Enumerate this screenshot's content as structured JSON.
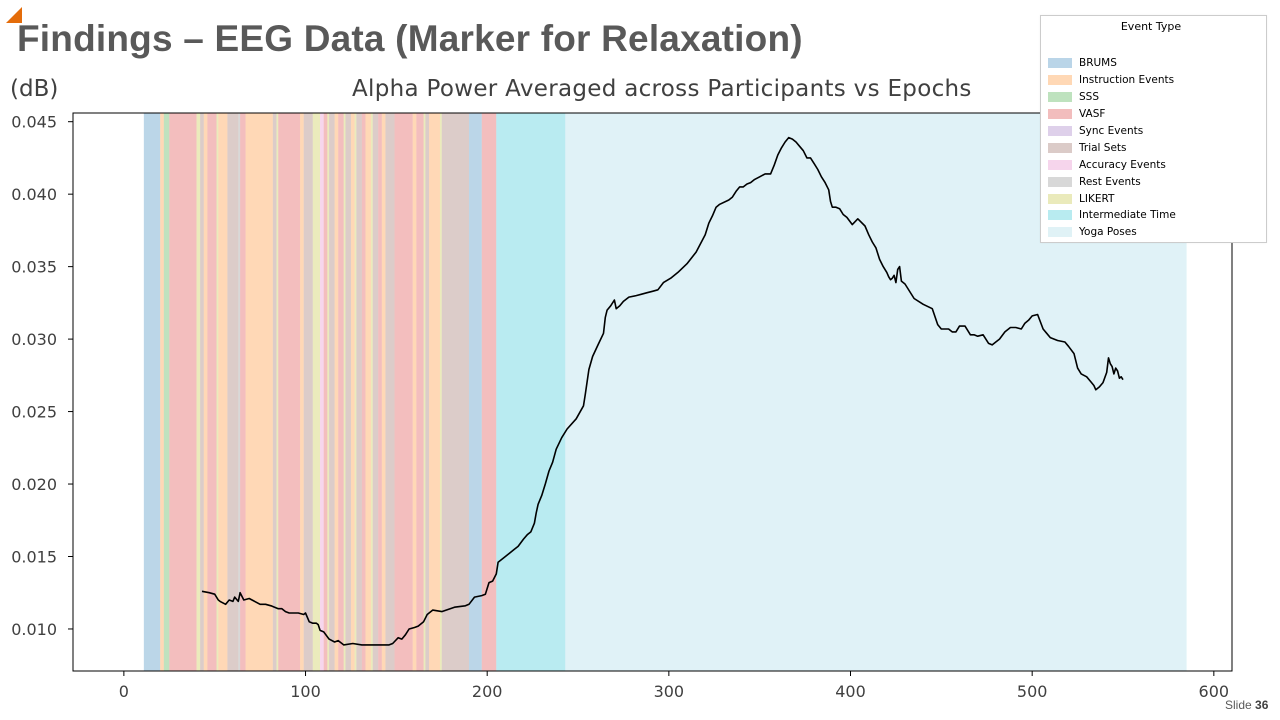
{
  "slide": {
    "title": "Findings – EEG Data (Marker for Relaxation)",
    "unit_label": "(dB)",
    "number_prefix": "Slide",
    "number": "36",
    "accent_color": "#e46c0a"
  },
  "legend": {
    "title": "Event Type",
    "items": [
      {
        "label": "BRUMS",
        "color": "#1f77b4"
      },
      {
        "label": "Instruction Events",
        "color": "#ff7f0e"
      },
      {
        "label": "SSS",
        "color": "#2ca02c"
      },
      {
        "label": "VASF",
        "color": "#d62728"
      },
      {
        "label": "Sync Events",
        "color": "#9467bd"
      },
      {
        "label": "Trial Sets",
        "color": "#8c564b"
      },
      {
        "label": "Accuracy Events",
        "color": "#e377c2"
      },
      {
        "label": "Rest Events",
        "color": "#7f7f7f"
      },
      {
        "label": "LIKERT",
        "color": "#bcbd22"
      },
      {
        "label": "Intermediate Time",
        "color": "#17becf"
      },
      {
        "label": "Yoga Poses",
        "color": "#a7dbe8"
      }
    ]
  },
  "chart_data": {
    "type": "line",
    "title": "Alpha Power Averaged across Participants vs Epochs",
    "xlabel": "",
    "ylabel": "(dB)",
    "xlim": [
      -28,
      610
    ],
    "ylim": [
      0.0071,
      0.0456
    ],
    "xticks": [
      "0",
      "100",
      "200",
      "300",
      "400",
      "500",
      "600"
    ],
    "xtick_values": [
      0,
      100,
      200,
      300,
      400,
      500,
      600
    ],
    "yticks": [
      "0.010",
      "0.015",
      "0.020",
      "0.025",
      "0.030",
      "0.035",
      "0.040",
      "0.045"
    ],
    "ytick_values": [
      0.01,
      0.015,
      0.02,
      0.025,
      0.03,
      0.035,
      0.04,
      0.045
    ],
    "grid": false,
    "legend_position": "top-right",
    "event_spans": [
      {
        "type": "BRUMS",
        "start": 11,
        "end": 20
      },
      {
        "type": "Instruction Events",
        "start": 20,
        "end": 22
      },
      {
        "type": "SSS",
        "start": 22,
        "end": 25
      },
      {
        "type": "VASF",
        "start": 25,
        "end": 40
      },
      {
        "type": "LIKERT",
        "start": 40,
        "end": 42
      },
      {
        "type": "Trial Sets",
        "start": 42,
        "end": 44
      },
      {
        "type": "Instruction Events",
        "start": 44,
        "end": 46
      },
      {
        "type": "VASF",
        "start": 46,
        "end": 51
      },
      {
        "type": "LIKERT",
        "start": 51,
        "end": 52
      },
      {
        "type": "Instruction Events",
        "start": 52,
        "end": 57
      },
      {
        "type": "Trial Sets",
        "start": 57,
        "end": 63
      },
      {
        "type": "Rest Events",
        "start": 63,
        "end": 64
      },
      {
        "type": "VASF",
        "start": 64,
        "end": 67
      },
      {
        "type": "Instruction Events",
        "start": 67,
        "end": 82
      },
      {
        "type": "Trial Sets",
        "start": 82,
        "end": 84
      },
      {
        "type": "LIKERT",
        "start": 84,
        "end": 85
      },
      {
        "type": "VASF",
        "start": 85,
        "end": 97
      },
      {
        "type": "Instruction Events",
        "start": 97,
        "end": 99
      },
      {
        "type": "Trial Sets",
        "start": 99,
        "end": 104
      },
      {
        "type": "LIKERT",
        "start": 104,
        "end": 108
      },
      {
        "type": "Accuracy Events",
        "start": 108,
        "end": 110
      },
      {
        "type": "VASF",
        "start": 110,
        "end": 112
      },
      {
        "type": "LIKERT",
        "start": 112,
        "end": 113
      },
      {
        "type": "Trial Sets",
        "start": 113,
        "end": 116
      },
      {
        "type": "Instruction Events",
        "start": 116,
        "end": 118
      },
      {
        "type": "VASF",
        "start": 118,
        "end": 121
      },
      {
        "type": "LIKERT",
        "start": 121,
        "end": 122
      },
      {
        "type": "Trial Sets",
        "start": 122,
        "end": 125
      },
      {
        "type": "Instruction Events",
        "start": 125,
        "end": 127
      },
      {
        "type": "LIKERT",
        "start": 127,
        "end": 128
      },
      {
        "type": "Trial Sets",
        "start": 128,
        "end": 131
      },
      {
        "type": "VASF",
        "start": 131,
        "end": 133
      },
      {
        "type": "Instruction Events",
        "start": 133,
        "end": 136
      },
      {
        "type": "LIKERT",
        "start": 136,
        "end": 137
      },
      {
        "type": "Trial Sets",
        "start": 137,
        "end": 140
      },
      {
        "type": "VASF",
        "start": 140,
        "end": 142
      },
      {
        "type": "Instruction Events",
        "start": 142,
        "end": 144
      },
      {
        "type": "Trial Sets",
        "start": 144,
        "end": 149
      },
      {
        "type": "VASF",
        "start": 149,
        "end": 159
      },
      {
        "type": "Instruction Events",
        "start": 159,
        "end": 161
      },
      {
        "type": "VASF",
        "start": 161,
        "end": 165
      },
      {
        "type": "LIKERT",
        "start": 165,
        "end": 166
      },
      {
        "type": "Trial Sets",
        "start": 166,
        "end": 168
      },
      {
        "type": "Instruction Events",
        "start": 168,
        "end": 174
      },
      {
        "type": "LIKERT",
        "start": 174,
        "end": 175
      },
      {
        "type": "Trial Sets",
        "start": 175,
        "end": 190
      },
      {
        "type": "BRUMS",
        "start": 190,
        "end": 197
      },
      {
        "type": "VASF",
        "start": 197,
        "end": 205
      },
      {
        "type": "Intermediate Time",
        "start": 205,
        "end": 243
      },
      {
        "type": "Yoga Poses",
        "start": 243,
        "end": 585
      }
    ],
    "series": [
      {
        "color": "#000000",
        "x": [
          43,
          47,
          50,
          52,
          53,
          56,
          58,
          60,
          61,
          63,
          64,
          66,
          69,
          72,
          75,
          78,
          81,
          83,
          85,
          87,
          89,
          91,
          96,
          99,
          100,
          102,
          104,
          106,
          107,
          108,
          110,
          113,
          116,
          118,
          121,
          126,
          131,
          136,
          141,
          146,
          148,
          151,
          153,
          155,
          157,
          160,
          162,
          165,
          167,
          170,
          175,
          182,
          188,
          190,
          193,
          197,
          199,
          200,
          201,
          203,
          205,
          206,
          209,
          212,
          215,
          217,
          220,
          222,
          224,
          226,
          227,
          228,
          230,
          232,
          234,
          236,
          238,
          241,
          244,
          249,
          253,
          254,
          256,
          258,
          261,
          264,
          265,
          266,
          268,
          270,
          271,
          273,
          275,
          278,
          282,
          285,
          288,
          291,
          294,
          297,
          301,
          305,
          310,
          315,
          320,
          322,
          324,
          326,
          328,
          333,
          335,
          337,
          339,
          341,
          343,
          345,
          347,
          350,
          353,
          356,
          358,
          360,
          362,
          364,
          366,
          368,
          370,
          372,
          374,
          376,
          378,
          380,
          382,
          384,
          386,
          388,
          389,
          390,
          392,
          394,
          396,
          398,
          401,
          404,
          408,
          410,
          412,
          414,
          416,
          418,
          420,
          421,
          422,
          423,
          424,
          425,
          426,
          427,
          428,
          430,
          435,
          440,
          445,
          448,
          450,
          452,
          454,
          456,
          458,
          460,
          463,
          466,
          468,
          470,
          473,
          476,
          478,
          480,
          482,
          485,
          488,
          491,
          494,
          496,
          498,
          500,
          503,
          506,
          508,
          510,
          514,
          518,
          520,
          523,
          525,
          527,
          530,
          532,
          534,
          535,
          537,
          539,
          541,
          542,
          543,
          544,
          545,
          546,
          547,
          548,
          549,
          550
        ],
        "y": [
          0.0126,
          0.0125,
          0.0124,
          0.012,
          0.0119,
          0.0117,
          0.012,
          0.0119,
          0.0122,
          0.0119,
          0.0125,
          0.012,
          0.0121,
          0.0119,
          0.0117,
          0.0117,
          0.0116,
          0.0115,
          0.0114,
          0.0114,
          0.0112,
          0.0111,
          0.0111,
          0.011,
          0.0111,
          0.0105,
          0.0104,
          0.0104,
          0.0103,
          0.0099,
          0.0098,
          0.0093,
          0.0091,
          0.0092,
          0.0089,
          0.009,
          0.0089,
          0.0089,
          0.0089,
          0.0089,
          0.009,
          0.0094,
          0.0093,
          0.0096,
          0.01,
          0.0101,
          0.0102,
          0.0105,
          0.011,
          0.0113,
          0.0112,
          0.0115,
          0.0116,
          0.0117,
          0.0122,
          0.0123,
          0.0124,
          0.0128,
          0.0132,
          0.0133,
          0.0138,
          0.0146,
          0.0149,
          0.0152,
          0.0155,
          0.0157,
          0.0162,
          0.0165,
          0.0167,
          0.0173,
          0.018,
          0.0186,
          0.0192,
          0.02,
          0.0209,
          0.0215,
          0.0224,
          0.0232,
          0.0238,
          0.0245,
          0.0254,
          0.0262,
          0.0279,
          0.0288,
          0.0296,
          0.0304,
          0.0315,
          0.032,
          0.0323,
          0.0327,
          0.0321,
          0.0323,
          0.0326,
          0.0329,
          0.033,
          0.0331,
          0.0332,
          0.0333,
          0.0334,
          0.0339,
          0.0342,
          0.0346,
          0.0352,
          0.036,
          0.0372,
          0.038,
          0.0385,
          0.0391,
          0.0393,
          0.0396,
          0.0398,
          0.0402,
          0.0405,
          0.0405,
          0.0407,
          0.0408,
          0.041,
          0.0412,
          0.0414,
          0.0414,
          0.042,
          0.0427,
          0.0432,
          0.0436,
          0.0439,
          0.0438,
          0.0436,
          0.0433,
          0.043,
          0.0425,
          0.0425,
          0.0421,
          0.0417,
          0.0412,
          0.0408,
          0.0403,
          0.0395,
          0.0391,
          0.0391,
          0.039,
          0.0386,
          0.0384,
          0.0379,
          0.0383,
          0.0378,
          0.0372,
          0.0367,
          0.0363,
          0.0355,
          0.035,
          0.0346,
          0.0343,
          0.0341,
          0.0342,
          0.0344,
          0.0339,
          0.0348,
          0.035,
          0.034,
          0.0338,
          0.0328,
          0.0324,
          0.0321,
          0.031,
          0.0307,
          0.0307,
          0.0307,
          0.0305,
          0.0305,
          0.0309,
          0.0309,
          0.0303,
          0.0303,
          0.0302,
          0.0303,
          0.0297,
          0.0296,
          0.0298,
          0.03,
          0.0305,
          0.0308,
          0.0308,
          0.0307,
          0.0311,
          0.0313,
          0.0316,
          0.0317,
          0.0307,
          0.0304,
          0.0301,
          0.0299,
          0.0298,
          0.0295,
          0.029,
          0.028,
          0.0276,
          0.0274,
          0.0271,
          0.0268,
          0.0265,
          0.0267,
          0.027,
          0.0277,
          0.0287,
          0.0283,
          0.0281,
          0.0276,
          0.028,
          0.0278,
          0.0273,
          0.0274,
          0.0272
        ]
      }
    ]
  }
}
